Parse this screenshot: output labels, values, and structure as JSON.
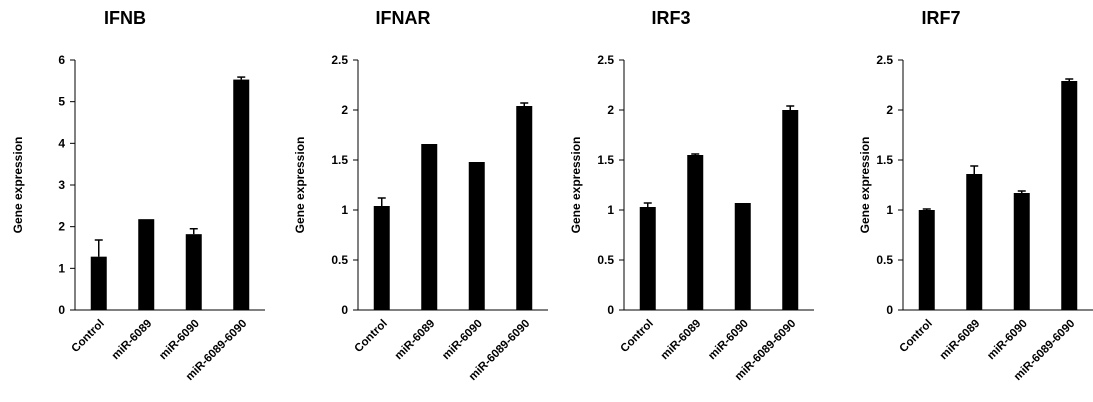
{
  "chart_data": [
    {
      "type": "bar",
      "title": "IFNB",
      "ylabel": "Gene expression",
      "xlabel": "",
      "categories": [
        "Control",
        "miR-6089",
        "miR-6090",
        "miR-6089-6090"
      ],
      "values": [
        1.28,
        2.18,
        1.82,
        5.53
      ],
      "errors": [
        0.4,
        0.0,
        0.13,
        0.06
      ],
      "ylim": [
        0,
        6
      ],
      "yticks": [
        "0",
        "1",
        "2",
        "3",
        "4",
        "5",
        "6"
      ],
      "bar_color": "#000000",
      "grid": false,
      "legend": "none"
    },
    {
      "type": "bar",
      "title": "IFNAR",
      "ylabel": "Gene expression",
      "xlabel": "",
      "categories": [
        "Control",
        "miR-6089",
        "miR-6090",
        "miR-6089-6090"
      ],
      "values": [
        1.04,
        1.66,
        1.48,
        2.04
      ],
      "errors": [
        0.08,
        0.0,
        0.0,
        0.03
      ],
      "ylim": [
        0,
        2.5
      ],
      "yticks": [
        "0",
        "0.5",
        "1",
        "1.5",
        "2",
        "2.5"
      ],
      "bar_color": "#000000",
      "grid": false,
      "legend": "none"
    },
    {
      "type": "bar",
      "title": "IRF3",
      "ylabel": "Gene expression",
      "xlabel": "",
      "categories": [
        "Control",
        "miR-6089",
        "miR-6090",
        "miR-6089-6090"
      ],
      "values": [
        1.03,
        1.55,
        1.07,
        2.0
      ],
      "errors": [
        0.04,
        0.01,
        0.0,
        0.04
      ],
      "ylim": [
        0,
        2.5
      ],
      "yticks": [
        "0",
        "0.5",
        "1",
        "1.5",
        "2",
        "2.5"
      ],
      "bar_color": "#000000",
      "grid": false,
      "legend": "none"
    },
    {
      "type": "bar",
      "title": "IRF7",
      "ylabel": "Gene expression",
      "xlabel": "",
      "categories": [
        "Control",
        "miR-6089",
        "miR-6090",
        "miR-6089-6090"
      ],
      "values": [
        1.0,
        1.36,
        1.17,
        2.29
      ],
      "errors": [
        0.01,
        0.08,
        0.02,
        0.02
      ],
      "ylim": [
        0,
        2.5
      ],
      "yticks": [
        "0",
        "0.5",
        "1",
        "1.5",
        "2",
        "2.5"
      ],
      "bar_color": "#000000",
      "grid": false,
      "legend": "none"
    }
  ]
}
